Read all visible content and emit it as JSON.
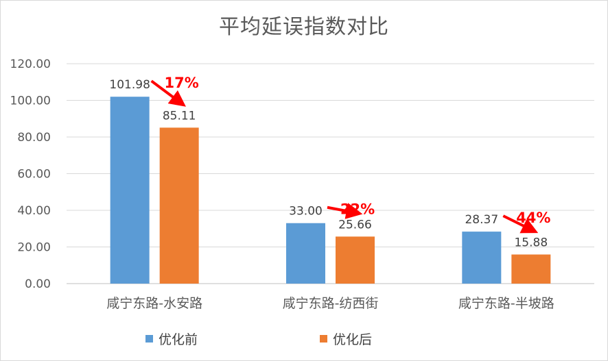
{
  "chart_data": {
    "type": "bar",
    "title": "平均延误指数对比",
    "categories": [
      "咸宁东路-水安路",
      "咸宁东路-纺西街",
      "咸宁东路-半坡路"
    ],
    "series": [
      {
        "name": "优化前",
        "color": "#5b9bd5",
        "values": [
          101.98,
          33.0,
          28.37
        ],
        "labels": [
          "101.98",
          "33.00",
          "28.37"
        ]
      },
      {
        "name": "优化后",
        "color": "#ed7d31",
        "values": [
          85.11,
          25.66,
          15.88
        ],
        "labels": [
          "85.11",
          "25.66",
          "15.88"
        ]
      }
    ],
    "annotations": [
      {
        "category": "咸宁东路-水安路",
        "text": "17%",
        "color": "#ff0000"
      },
      {
        "category": "咸宁东路-纺西街",
        "text": "22%",
        "color": "#ff0000"
      },
      {
        "category": "咸宁东路-半坡路",
        "text": "44%",
        "color": "#ff0000"
      }
    ],
    "yticks": [
      "0.00",
      "20.00",
      "40.00",
      "60.00",
      "80.00",
      "100.00",
      "120.00"
    ],
    "ylim": [
      0,
      120
    ],
    "grid": true,
    "legend_position": "bottom"
  }
}
